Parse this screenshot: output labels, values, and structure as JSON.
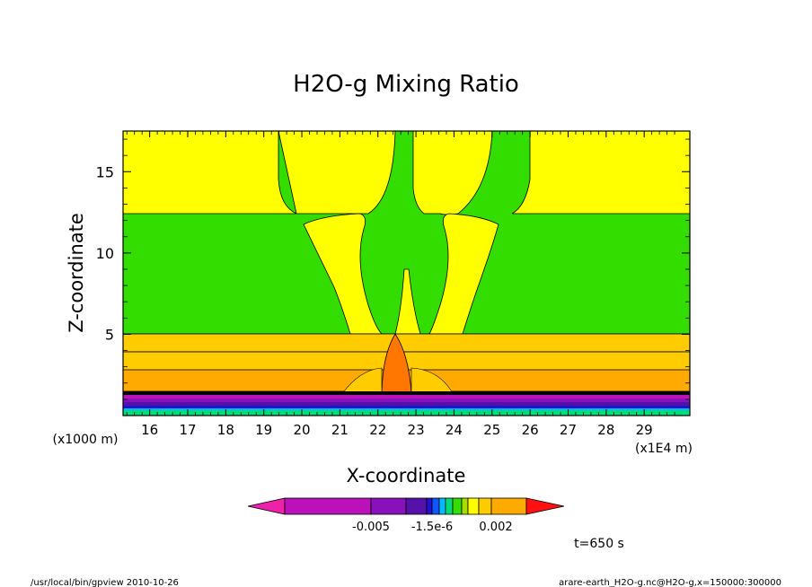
{
  "chart_data": {
    "type": "heatmap",
    "title": "H2O-g Mixing Ratio",
    "xlabel": "X-coordinate",
    "ylabel": "Z-coordinate",
    "x_unit_left": "(x1000 m)",
    "x_unit_right": "(x1E4 m)",
    "xlim": [
      15.3,
      30.2
    ],
    "ylim": [
      0,
      17.5
    ],
    "x_ticks": [
      16,
      17,
      18,
      19,
      20,
      21,
      22,
      23,
      24,
      25,
      26,
      27,
      28,
      29
    ],
    "y_ticks": [
      5,
      10,
      15
    ],
    "grid": false,
    "colorbar": {
      "colors": [
        "#ee22aa",
        "#bb11bb",
        "#8811bb",
        "#5511aa",
        "#2211cc",
        "#1155ff",
        "#00bbff",
        "#00dd77",
        "#33dd00",
        "#aadd00",
        "#ffff00",
        "#ffcc00",
        "#ffaa00",
        "#ff7700",
        "#ff1111"
      ],
      "tick_labels": [
        "-0.005",
        "-1.5e-6",
        "0.002"
      ]
    },
    "time_label": "t=650 s"
  },
  "footer": {
    "left": "/usr/local/bin/gpview   2010-10-26",
    "right": "arare-earth_H2O-g.nc@H2O-g,x=150000:300000"
  }
}
